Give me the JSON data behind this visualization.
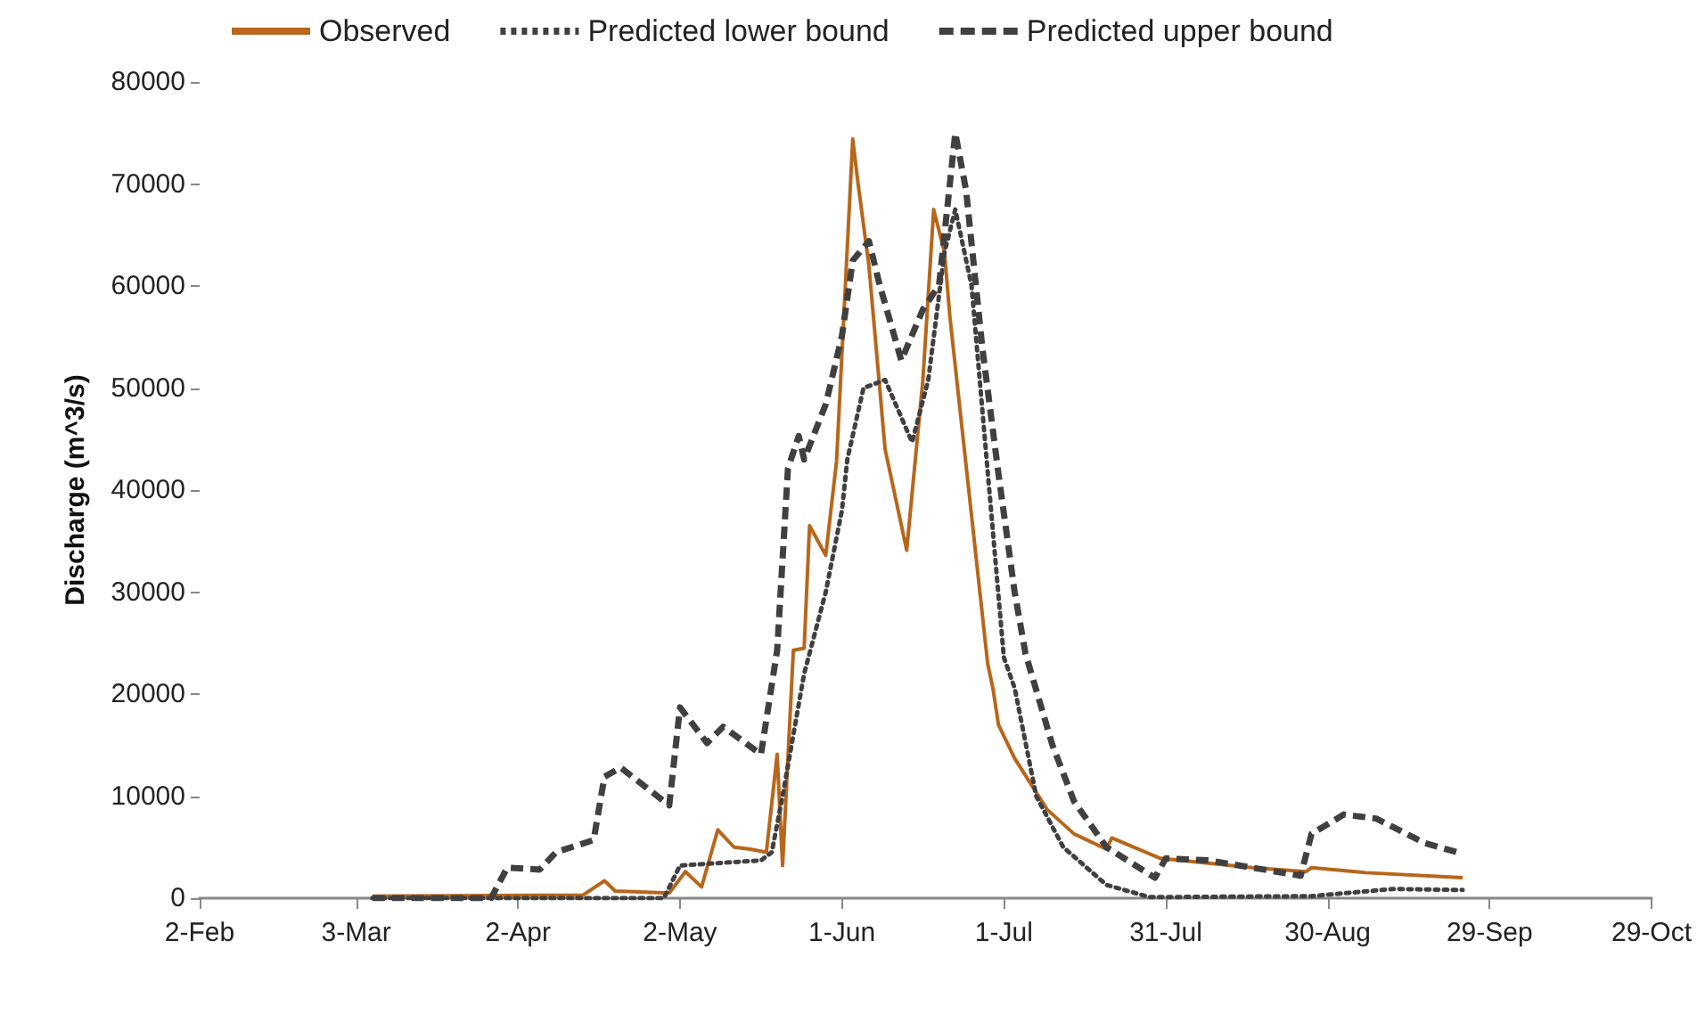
{
  "chart_data": {
    "type": "line",
    "ylabel": "Discharge (m^3/s)",
    "legend": "top left",
    "grid": false,
    "marker": "none",
    "xlim": [
      "--02-02",
      "--10-29"
    ],
    "xticks": [
      {
        "value": "--02-02",
        "label": "2-Feb"
      },
      {
        "value": "--03-03",
        "label": "3-Mar"
      },
      {
        "value": "--04-02",
        "label": "2-Apr"
      },
      {
        "value": "--05-02",
        "label": "2-May"
      },
      {
        "value": "--06-01",
        "label": "1-Jun"
      },
      {
        "value": "--07-01",
        "label": "1-Jul"
      },
      {
        "value": "--07-31",
        "label": "31-Jul"
      },
      {
        "value": "--08-30",
        "label": "30-Aug"
      },
      {
        "value": "--09-29",
        "label": "29-Sep"
      },
      {
        "value": "--10-29",
        "label": "29-Oct"
      }
    ],
    "ylim": [
      0,
      80000
    ],
    "yticks": [
      0,
      10000,
      20000,
      30000,
      40000,
      50000,
      60000,
      70000,
      80000
    ],
    "series": [
      {
        "name": "Observed",
        "color": "#b8661b",
        "line_style": "solid",
        "x": [
          "--03-06",
          "--04-14",
          "--04-18",
          "--04-20",
          "--04-30",
          "--05-03",
          "--05-06",
          "--05-09",
          "--05-12",
          "--05-15",
          "--05-18",
          "--05-20",
          "--05-21",
          "--05-23",
          "--05-25",
          "--05-26",
          "--05-29",
          "--05-31",
          "--06-03",
          "--06-04",
          "--06-06",
          "--06-09",
          "--06-13",
          "--06-16",
          "--06-18",
          "--06-20",
          "--06-21",
          "--06-28",
          "--06-29",
          "--06-30",
          "--07-03",
          "--07-09",
          "--07-14",
          "--07-20",
          "--07-21",
          "--07-30",
          "--08-16",
          "--08-26",
          "--08-27",
          "--09-06",
          "--09-24"
        ],
        "values": [
          200,
          300,
          1700,
          700,
          500,
          2600,
          1100,
          6700,
          5000,
          4800,
          4500,
          14100,
          3200,
          24300,
          24500,
          36500,
          33600,
          42800,
          74400,
          70000,
          62000,
          44000,
          34100,
          50800,
          67500,
          63300,
          57000,
          23000,
          20500,
          17000,
          13700,
          8700,
          6300,
          4800,
          5900,
          3900,
          3000,
          2600,
          3000,
          2500,
          2000
        ]
      },
      {
        "name": "Predicted lower bound",
        "color": "#404040",
        "line_style": "dotted",
        "x": [
          "--03-06",
          "--04-29",
          "--05-02",
          "--05-17",
          "--05-19",
          "--05-21",
          "--05-25",
          "--05-29",
          "--06-01",
          "--06-02",
          "--06-05",
          "--06-09",
          "--06-14",
          "--06-17",
          "--06-20",
          "--06-22",
          "--06-25",
          "--07-01",
          "--07-03",
          "--07-07",
          "--07-12",
          "--07-20",
          "--07-28",
          "--08-27",
          "--09-11",
          "--09-24"
        ],
        "values": [
          0,
          0,
          3200,
          3700,
          4500,
          10000,
          22000,
          30000,
          38000,
          43000,
          50000,
          50800,
          44700,
          50800,
          63300,
          67500,
          60100,
          23600,
          20600,
          10000,
          5000,
          1300,
          100,
          200,
          900,
          800
        ]
      },
      {
        "name": "Predicted upper bound",
        "color": "#404040",
        "line_style": "dashed",
        "x": [
          "--03-06",
          "--03-28",
          "--03-31",
          "--04-06",
          "--04-09",
          "--04-16",
          "--04-18",
          "--04-21",
          "--04-30",
          "--05-02",
          "--05-07",
          "--05-10",
          "--05-17",
          "--05-20",
          "--05-22",
          "--05-24",
          "--05-25",
          "--05-29",
          "--06-01",
          "--06-03",
          "--06-06",
          "--06-08",
          "--06-12",
          "--06-16",
          "--06-19",
          "--06-22",
          "--06-24",
          "--06-27",
          "--06-30",
          "--07-03",
          "--07-05",
          "--07-10",
          "--07-14",
          "--07-20",
          "--07-29",
          "--07-31",
          "--08-08",
          "--08-25",
          "--08-27",
          "--09-02",
          "--09-08",
          "--09-17",
          "--09-23"
        ],
        "values": [
          0,
          0,
          3000,
          2800,
          4500,
          5700,
          11900,
          12800,
          9100,
          18700,
          15200,
          16800,
          14100,
          24300,
          42100,
          45300,
          43000,
          48400,
          55100,
          62500,
          64400,
          60100,
          52700,
          57700,
          60100,
          75000,
          69400,
          54000,
          41600,
          30000,
          24000,
          15000,
          9500,
          5000,
          2000,
          3900,
          3700,
          2200,
          6300,
          8200,
          7800,
          5400,
          4500
        ]
      }
    ]
  }
}
